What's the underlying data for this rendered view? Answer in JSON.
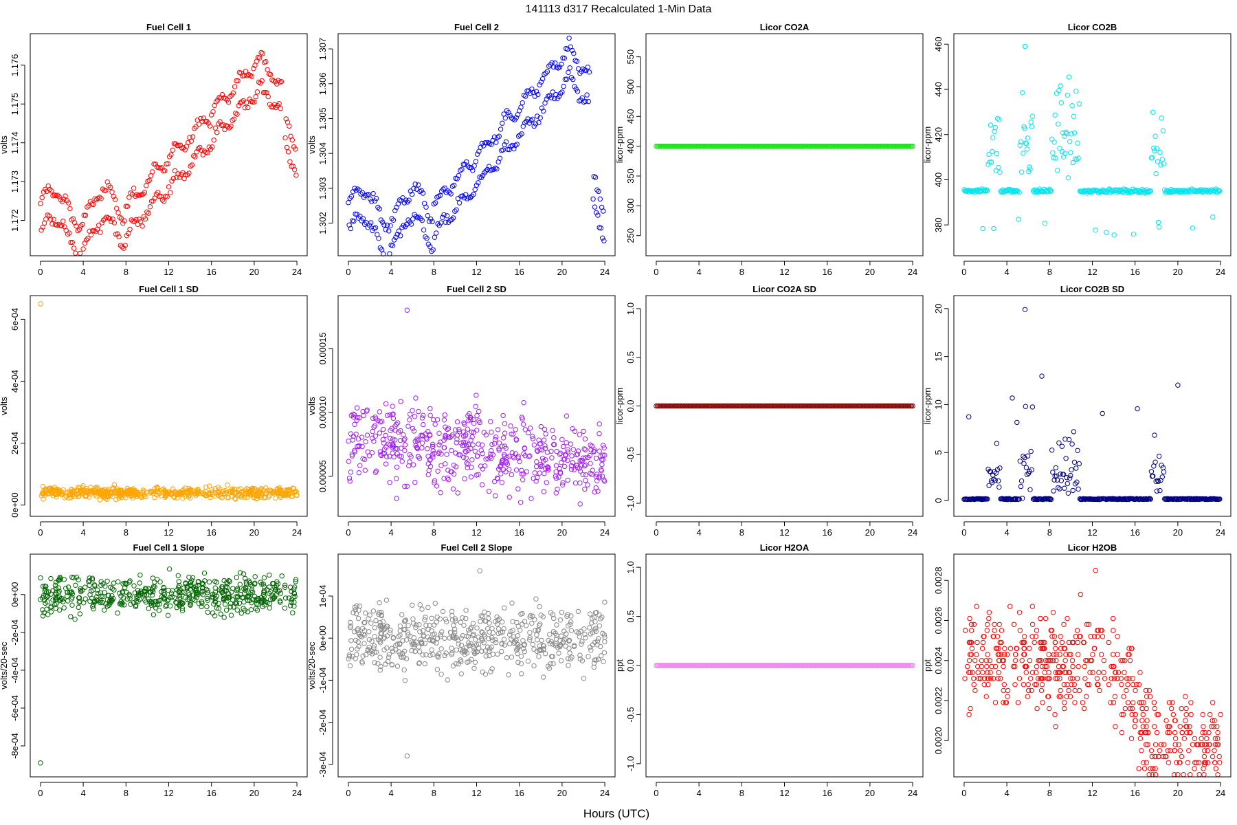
{
  "figure": {
    "title": "141113   d317   Recalculated 1-Min Data",
    "xlabel": "Hours (UTC)"
  },
  "chart_data": [
    {
      "type": "scatter",
      "title": "Fuel Cell 1",
      "ylabel": "volts",
      "xlim": [
        0,
        24
      ],
      "ylim": [
        1.1713,
        1.1766
      ],
      "xticks": [
        0,
        4,
        8,
        12,
        16,
        20,
        24
      ],
      "yticks": [
        1.172,
        1.173,
        1.174,
        1.175,
        1.176
      ],
      "ytick_labels": [
        "1.172",
        "1.173",
        "1.174",
        "1.175",
        "1.176"
      ],
      "color": "#ff0000",
      "pattern": "drift_dual",
      "series_summary": {
        "start": 1.172,
        "end_before_gap": 1.1755,
        "peak_hour": 20.8,
        "peak": 1.1762,
        "after_gap_end": 1.1737
      }
    },
    {
      "type": "scatter",
      "title": "Fuel Cell 2",
      "ylabel": "volts",
      "xlim": [
        0,
        24
      ],
      "ylim": [
        1.3013,
        1.3072
      ],
      "xticks": [
        0,
        4,
        8,
        12,
        16,
        20,
        24
      ],
      "yticks": [
        1.302,
        1.303,
        1.304,
        1.305,
        1.306,
        1.307
      ],
      "ytick_labels": [
        "1.302",
        "1.303",
        "1.304",
        "1.305",
        "1.306",
        "1.307"
      ],
      "color": "#0000ff",
      "pattern": "drift_dual",
      "series_summary": {
        "start": 1.3021,
        "end_before_gap": 1.3062,
        "peak_hour": 20.8,
        "peak": 1.307,
        "after_gap_end": 1.3022
      }
    },
    {
      "type": "scatter",
      "title": "Licor CO2A",
      "ylabel": "licor-ppm",
      "xlim": [
        0,
        24
      ],
      "ylim": [
        230,
        575
      ],
      "xticks": [
        0,
        4,
        8,
        12,
        16,
        20,
        24
      ],
      "yticks": [
        250,
        300,
        350,
        400,
        450,
        500,
        550
      ],
      "ytick_labels": [
        "250",
        "300",
        "350",
        "400",
        "450",
        "500",
        "550"
      ],
      "color": "#00ee00",
      "pattern": "constant",
      "series_summary": {
        "value": 400
      }
    },
    {
      "type": "scatter",
      "title": "Licor CO2B",
      "ylabel": "licor-ppm",
      "xlim": [
        0,
        24
      ],
      "ylim": [
        370,
        461
      ],
      "xticks": [
        0,
        4,
        8,
        12,
        16,
        20,
        24
      ],
      "yticks": [
        380,
        400,
        420,
        440,
        460
      ],
      "ytick_labels": [
        "380",
        "400",
        "420",
        "440",
        "460"
      ],
      "color": "#00e5ee",
      "pattern": "baseline_bursts",
      "series_summary": {
        "baseline": 395,
        "burst_windows": [
          [
            2.2,
            3.4
          ],
          [
            5.2,
            6.4
          ],
          [
            8.2,
            10.8
          ],
          [
            17.5,
            18.7
          ]
        ],
        "max": 459,
        "min": 374
      }
    },
    {
      "type": "scatter",
      "title": "Fuel Cell 1 SD",
      "ylabel": "volts",
      "xlim": [
        0,
        24
      ],
      "ylim": [
        -1e-05,
        0.00065
      ],
      "xticks": [
        0,
        4,
        8,
        12,
        16,
        20,
        24
      ],
      "yticks": [
        0,
        0.0002,
        0.0004,
        0.0006
      ],
      "ytick_labels": [
        "0e+00",
        "2e-04",
        "4e-04",
        "6e-04"
      ],
      "color": "#ffa500",
      "pattern": "noise_decay",
      "series_summary": {
        "mean": 4e-05,
        "outlier": [
          0,
          0.00065
        ]
      }
    },
    {
      "type": "scatter",
      "title": "Fuel Cell 2 SD",
      "ylabel": "volts",
      "xlim": [
        0,
        24
      ],
      "ylim": [
        2.5e-05,
        0.000185
      ],
      "xticks": [
        0,
        4,
        8,
        12,
        16,
        20,
        24
      ],
      "yticks": [
        5e-05,
        0.0001,
        0.00015
      ],
      "ytick_labels": [
        "0.00005",
        "0.00010",
        "0.00015"
      ],
      "color": "#a020f0",
      "pattern": "noise_decay",
      "series_summary": {
        "start_mean": 8e-05,
        "end_mean": 6e-05,
        "max": 0.00018
      }
    },
    {
      "type": "scatter",
      "title": "Licor CO2A SD",
      "ylabel": "licor-ppm",
      "xlim": [
        0,
        24
      ],
      "ylim": [
        -1.05,
        1.05
      ],
      "xticks": [
        0,
        4,
        8,
        12,
        16,
        20,
        24
      ],
      "yticks": [
        -1,
        -0.5,
        0,
        0.5,
        1
      ],
      "ytick_labels": [
        "-1.0",
        "-0.5",
        "0.0",
        "0.5",
        "1.0"
      ],
      "color": "#8b0000",
      "pattern": "constant",
      "series_summary": {
        "value": 0
      }
    },
    {
      "type": "scatter",
      "title": "Licor CO2B SD",
      "ylabel": "licor-ppm",
      "xlim": [
        0,
        24
      ],
      "ylim": [
        -0.8,
        20.5
      ],
      "xticks": [
        0,
        4,
        8,
        12,
        16,
        20,
        24
      ],
      "yticks": [
        0,
        5,
        10,
        15,
        20
      ],
      "ytick_labels": [
        "0",
        "5",
        "10",
        "15",
        "20"
      ],
      "color": "#000080",
      "pattern": "sd_bursts",
      "series_summary": {
        "baseline": 0.1,
        "burst_windows": [
          [
            2.2,
            3.4
          ],
          [
            5.2,
            6.4
          ],
          [
            8.2,
            10.8
          ],
          [
            17.5,
            18.7
          ]
        ],
        "max": 19.9
      }
    },
    {
      "type": "scatter",
      "title": "Fuel Cell 1 Slope",
      "ylabel": "volts/20-sec",
      "xlim": [
        0,
        24
      ],
      "ylim": [
        -0.00092,
        0.00017
      ],
      "xticks": [
        0,
        4,
        8,
        12,
        16,
        20,
        24
      ],
      "yticks": [
        -0.0008,
        -0.0006,
        -0.0004,
        -0.0002,
        0
      ],
      "ytick_labels": [
        "-8e-04",
        "-6e-04",
        "-4e-04",
        "-2e-04",
        "0e+00"
      ],
      "color": "#006400",
      "pattern": "slope_noise",
      "series_summary": {
        "center": 0,
        "spread": 5e-05,
        "outlier": [
          0,
          -0.00089
        ]
      }
    },
    {
      "type": "scatter",
      "title": "Fuel Cell 2 Slope",
      "ylabel": "volts/20-sec",
      "xlim": [
        0,
        24
      ],
      "ylim": [
        -0.00031,
        0.00018
      ],
      "xticks": [
        0,
        4,
        8,
        12,
        16,
        20,
        24
      ],
      "yticks": [
        -0.0003,
        -0.0002,
        -0.0001,
        0,
        0.0001
      ],
      "ytick_labels": [
        "-3e-04",
        "-2e-04",
        "-1e-04",
        "0e+00",
        "1e-04"
      ],
      "color": "#888888",
      "pattern": "slope_noise",
      "series_summary": {
        "center": 0,
        "spread": 4e-05,
        "min": -0.00028,
        "max": 0.00016
      }
    },
    {
      "type": "scatter",
      "title": "Licor H2OA",
      "ylabel": "ppt",
      "xlim": [
        0,
        24
      ],
      "ylim": [
        -1.05,
        1.05
      ],
      "xticks": [
        0,
        4,
        8,
        12,
        16,
        20,
        24
      ],
      "yticks": [
        -1,
        -0.5,
        0,
        0.5,
        1
      ],
      "ytick_labels": [
        "-1.0",
        "-0.5",
        "0.0",
        "0.5",
        "1.0"
      ],
      "color": "#ee82ee",
      "pattern": "constant",
      "series_summary": {
        "value": 0
      }
    },
    {
      "type": "scatter",
      "title": "Licor H2OB",
      "ylabel": "ppt",
      "xlim": [
        0,
        24
      ],
      "ylim": [
        0.00186,
        0.00289
      ],
      "xticks": [
        0,
        4,
        8,
        12,
        16,
        20,
        24
      ],
      "yticks": [
        0.002,
        0.0022,
        0.0024,
        0.0026,
        0.0028
      ],
      "ytick_labels": [
        "0.0020",
        "0.0022",
        "0.0024",
        "0.0026",
        "0.0028"
      ],
      "color": "#ff0000",
      "pattern": "quantized_decline",
      "series_summary": {
        "level_0_14h": 0.0024,
        "level_18_24h": 0.00197,
        "max": 0.00285,
        "min": 0.00188
      }
    }
  ]
}
